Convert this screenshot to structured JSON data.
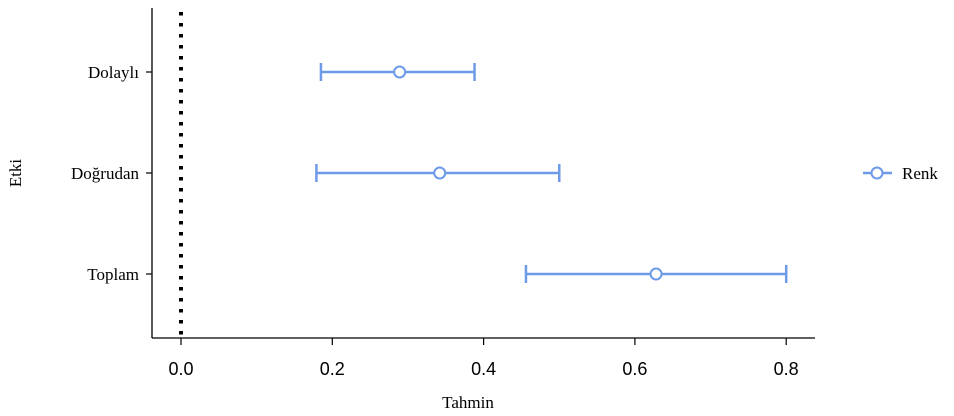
{
  "chart_data": {
    "type": "errorbar",
    "title": "",
    "xlabel": "Tahmin",
    "ylabel": "Etki",
    "xlim": [
      -0.04,
      0.835
    ],
    "xticks": [
      0.0,
      0.2,
      0.4,
      0.6,
      0.8
    ],
    "xtick_labels": [
      "0.0",
      "0.2",
      "0.4",
      "0.6",
      "0.8"
    ],
    "reference_line": {
      "x": 0.0,
      "style": "dotted",
      "color": "#000000"
    },
    "categories": [
      "Dolaylı",
      "Doğrudan",
      "Toplam"
    ],
    "series": [
      {
        "name": "Renk",
        "color": "#6f9ae8",
        "marker": "open-circle",
        "estimate": [
          0.289,
          0.342,
          0.628
        ],
        "lower": [
          0.185,
          0.179,
          0.456
        ],
        "upper": [
          0.388,
          0.5,
          0.8
        ]
      }
    ],
    "legend": {
      "position": "right",
      "label": "Renk"
    },
    "grid": false
  }
}
